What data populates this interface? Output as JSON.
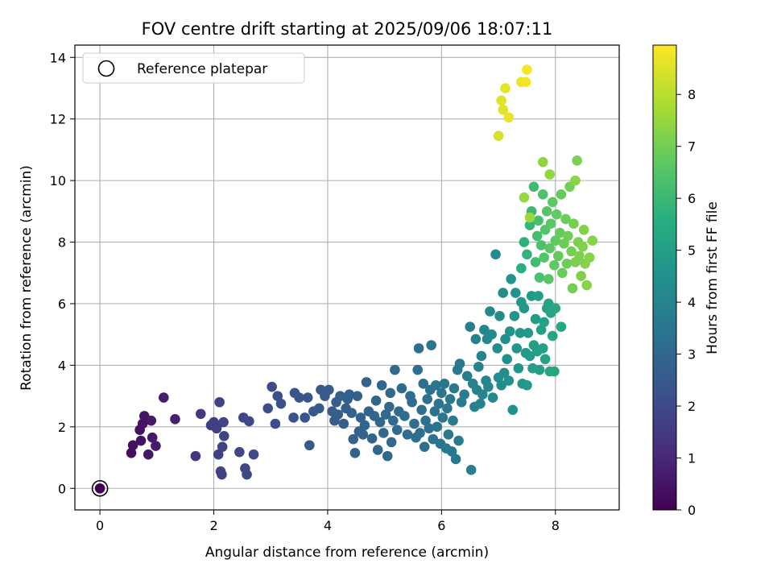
{
  "chart_data": {
    "type": "scatter",
    "title": "FOV centre drift starting at 2025/09/06 18:07:11",
    "xlabel": "Angular distance from reference (arcmin)",
    "ylabel": "Rotation from reference (arcmin)",
    "xlim": [
      -0.44,
      9.12
    ],
    "ylim": [
      -0.7,
      14.4
    ],
    "xticks": [
      0,
      2,
      4,
      6,
      8
    ],
    "yticks": [
      0,
      2,
      4,
      6,
      8,
      10,
      12,
      14
    ],
    "grid": true,
    "legend": {
      "placement": "top-left",
      "entries": [
        "Reference platepar"
      ]
    },
    "reference_point": {
      "x": 0,
      "y": 0
    },
    "colorbar": {
      "label": "Hours from first FF file",
      "range": [
        0,
        8.95
      ],
      "ticks": [
        0,
        1,
        2,
        3,
        4,
        5,
        6,
        7,
        8
      ],
      "colormap": "viridis"
    },
    "points": [
      [
        0.0,
        0.0,
        0.0
      ],
      [
        0.55,
        1.15,
        0.3
      ],
      [
        0.58,
        1.4,
        0.35
      ],
      [
        0.7,
        1.9,
        0.4
      ],
      [
        0.75,
        2.1,
        0.45
      ],
      [
        0.78,
        2.35,
        0.5
      ],
      [
        0.72,
        1.55,
        0.45
      ],
      [
        0.85,
        1.1,
        0.55
      ],
      [
        0.9,
        2.2,
        0.6
      ],
      [
        0.92,
        1.65,
        0.6
      ],
      [
        0.98,
        1.38,
        0.65
      ],
      [
        1.12,
        2.95,
        0.7
      ],
      [
        1.32,
        2.25,
        0.8
      ],
      [
        1.68,
        1.05,
        1.4
      ],
      [
        1.77,
        2.42,
        1.5
      ],
      [
        1.95,
        2.05,
        1.6
      ],
      [
        2.0,
        2.15,
        1.65
      ],
      [
        2.05,
        1.95,
        1.65
      ],
      [
        2.08,
        1.1,
        1.7
      ],
      [
        2.1,
        2.8,
        1.75
      ],
      [
        2.12,
        0.55,
        1.75
      ],
      [
        2.14,
        0.45,
        1.75
      ],
      [
        2.15,
        1.35,
        1.8
      ],
      [
        2.17,
        2.15,
        1.8
      ],
      [
        2.18,
        1.7,
        1.8
      ],
      [
        2.45,
        1.18,
        1.9
      ],
      [
        2.52,
        2.3,
        1.95
      ],
      [
        2.55,
        0.65,
        1.95
      ],
      [
        2.58,
        0.45,
        2.0
      ],
      [
        2.62,
        2.18,
        2.0
      ],
      [
        2.7,
        1.1,
        2.05
      ],
      [
        2.95,
        2.6,
        2.1
      ],
      [
        3.02,
        3.3,
        2.1
      ],
      [
        3.08,
        2.1,
        2.15
      ],
      [
        3.12,
        3.0,
        2.15
      ],
      [
        3.18,
        2.75,
        2.2
      ],
      [
        3.4,
        2.3,
        2.25
      ],
      [
        3.42,
        3.1,
        2.25
      ],
      [
        3.5,
        2.95,
        2.3
      ],
      [
        3.6,
        2.3,
        2.35
      ],
      [
        3.65,
        2.95,
        2.35
      ],
      [
        3.68,
        1.4,
        2.4
      ],
      [
        3.75,
        2.5,
        2.45
      ],
      [
        3.85,
        2.6,
        2.5
      ],
      [
        3.88,
        3.2,
        2.5
      ],
      [
        3.95,
        3.0,
        2.55
      ],
      [
        4.02,
        3.2,
        2.55
      ],
      [
        4.08,
        2.5,
        2.6
      ],
      [
        4.12,
        2.2,
        2.6
      ],
      [
        4.15,
        2.8,
        2.65
      ],
      [
        4.18,
        2.4,
        2.65
      ],
      [
        4.22,
        3.0,
        2.7
      ],
      [
        4.28,
        2.1,
        2.7
      ],
      [
        4.32,
        2.6,
        2.72
      ],
      [
        4.35,
        2.9,
        2.75
      ],
      [
        4.38,
        3.05,
        2.75
      ],
      [
        4.42,
        2.45,
        2.78
      ],
      [
        4.45,
        1.6,
        2.78
      ],
      [
        4.48,
        1.15,
        2.8
      ],
      [
        4.52,
        3.0,
        2.82
      ],
      [
        4.55,
        1.85,
        2.82
      ],
      [
        4.58,
        2.3,
        2.85
      ],
      [
        4.62,
        1.75,
        2.85
      ],
      [
        4.65,
        2.05,
        2.88
      ],
      [
        4.68,
        3.45,
        2.88
      ],
      [
        4.72,
        2.5,
        2.9
      ],
      [
        4.78,
        1.62,
        2.9
      ],
      [
        4.82,
        2.35,
        2.92
      ],
      [
        4.85,
        2.85,
        2.95
      ],
      [
        4.88,
        1.25,
        2.95
      ],
      [
        4.92,
        2.15,
        2.98
      ],
      [
        4.95,
        3.35,
        2.98
      ],
      [
        4.98,
        1.8,
        3.0
      ],
      [
        5.02,
        2.4,
        3.0
      ],
      [
        5.05,
        1.05,
        3.02
      ],
      [
        5.08,
        2.65,
        3.02
      ],
      [
        5.1,
        3.1,
        3.05
      ],
      [
        5.12,
        1.5,
        3.05
      ],
      [
        5.15,
        2.2,
        3.08
      ],
      [
        5.18,
        3.85,
        3.08
      ],
      [
        5.22,
        1.9,
        3.1
      ],
      [
        5.25,
        2.5,
        3.1
      ],
      [
        5.3,
        3.25,
        3.12
      ],
      [
        5.35,
        2.35,
        3.15
      ],
      [
        5.4,
        1.75,
        3.15
      ],
      [
        5.45,
        3.0,
        3.18
      ],
      [
        5.48,
        2.8,
        3.18
      ],
      [
        5.52,
        2.1,
        3.2
      ],
      [
        5.55,
        1.65,
        3.22
      ],
      [
        5.58,
        3.85,
        3.22
      ],
      [
        5.6,
        4.55,
        3.25
      ],
      [
        5.62,
        1.8,
        3.25
      ],
      [
        5.65,
        2.55,
        3.28
      ],
      [
        5.68,
        3.4,
        3.28
      ],
      [
        5.7,
        1.35,
        3.3
      ],
      [
        5.72,
        2.2,
        3.32
      ],
      [
        5.75,
        2.9,
        3.32
      ],
      [
        5.78,
        1.95,
        3.35
      ],
      [
        5.8,
        3.2,
        3.35
      ],
      [
        5.82,
        4.65,
        3.38
      ],
      [
        5.85,
        1.6,
        3.38
      ],
      [
        5.88,
        2.5,
        3.4
      ],
      [
        5.9,
        3.35,
        3.42
      ],
      [
        5.92,
        2.0,
        3.42
      ],
      [
        5.95,
        2.75,
        3.45
      ],
      [
        5.98,
        1.45,
        3.45
      ],
      [
        6.0,
        3.1,
        3.48
      ],
      [
        6.02,
        2.3,
        3.48
      ],
      [
        6.05,
        3.4,
        3.5
      ],
      [
        6.08,
        1.3,
        3.52
      ],
      [
        6.1,
        2.6,
        3.52
      ],
      [
        6.12,
        1.75,
        3.55
      ],
      [
        6.15,
        2.9,
        3.55
      ],
      [
        6.18,
        1.2,
        3.58
      ],
      [
        6.2,
        2.2,
        3.6
      ],
      [
        6.22,
        3.25,
        3.6
      ],
      [
        6.25,
        0.95,
        3.62
      ],
      [
        6.28,
        3.85,
        3.62
      ],
      [
        6.3,
        1.55,
        3.65
      ],
      [
        6.32,
        4.05,
        3.65
      ],
      [
        6.35,
        2.8,
        3.68
      ],
      [
        6.4,
        3.05,
        3.7
      ],
      [
        6.45,
        3.65,
        3.75
      ],
      [
        6.5,
        5.25,
        3.8
      ],
      [
        6.52,
        0.6,
        3.8
      ],
      [
        6.55,
        3.4,
        3.85
      ],
      [
        6.58,
        2.65,
        3.88
      ],
      [
        6.6,
        4.85,
        3.9
      ],
      [
        6.62,
        3.2,
        3.92
      ],
      [
        6.65,
        3.95,
        3.95
      ],
      [
        6.68,
        2.75,
        3.98
      ],
      [
        6.7,
        4.3,
        4.0
      ],
      [
        6.72,
        3.05,
        4.02
      ],
      [
        6.75,
        5.15,
        4.05
      ],
      [
        6.78,
        3.5,
        4.08
      ],
      [
        6.8,
        4.85,
        4.1
      ],
      [
        6.82,
        3.3,
        4.12
      ],
      [
        6.85,
        5.75,
        4.15
      ],
      [
        6.88,
        5.0,
        4.18
      ],
      [
        6.9,
        2.95,
        4.2
      ],
      [
        6.95,
        7.6,
        4.25
      ],
      [
        6.98,
        4.55,
        4.28
      ],
      [
        7.0,
        3.6,
        4.3
      ],
      [
        7.02,
        5.6,
        4.32
      ],
      [
        7.05,
        3.35,
        4.35
      ],
      [
        7.08,
        6.35,
        4.38
      ],
      [
        7.1,
        3.75,
        4.4
      ],
      [
        7.12,
        4.85,
        4.42
      ],
      [
        7.15,
        4.2,
        4.45
      ],
      [
        7.18,
        3.5,
        4.48
      ],
      [
        7.2,
        5.1,
        4.5
      ],
      [
        7.22,
        6.8,
        4.52
      ],
      [
        7.25,
        2.55,
        4.55
      ],
      [
        7.28,
        5.6,
        4.58
      ],
      [
        7.3,
        6.35,
        4.6
      ],
      [
        7.32,
        4.55,
        4.62
      ],
      [
        7.35,
        3.9,
        4.65
      ],
      [
        7.38,
        5.05,
        4.68
      ],
      [
        7.4,
        6.05,
        4.7
      ],
      [
        7.42,
        3.4,
        4.72
      ],
      [
        7.45,
        5.85,
        4.75
      ],
      [
        7.48,
        4.4,
        4.78
      ],
      [
        7.5,
        3.35,
        4.8
      ],
      [
        7.52,
        5.05,
        4.82
      ],
      [
        7.55,
        4.3,
        4.85
      ],
      [
        7.58,
        6.25,
        4.88
      ],
      [
        7.6,
        3.9,
        4.9
      ],
      [
        7.62,
        4.65,
        4.92
      ],
      [
        7.65,
        5.5,
        4.95
      ],
      [
        7.68,
        4.45,
        4.98
      ],
      [
        7.7,
        6.25,
        5.0
      ],
      [
        7.72,
        3.85,
        5.02
      ],
      [
        7.75,
        5.15,
        5.05
      ],
      [
        7.78,
        4.55,
        5.08
      ],
      [
        7.8,
        5.4,
        5.1
      ],
      [
        7.82,
        4.2,
        5.12
      ],
      [
        7.85,
        5.85,
        5.15
      ],
      [
        7.88,
        6.0,
        5.18
      ],
      [
        7.9,
        3.8,
        5.2
      ],
      [
        7.92,
        5.7,
        5.22
      ],
      [
        7.95,
        4.95,
        5.25
      ],
      [
        7.98,
        3.8,
        5.28
      ],
      [
        8.0,
        5.85,
        5.3
      ],
      [
        8.1,
        5.25,
        5.35
      ],
      [
        7.4,
        7.15,
        5.6
      ],
      [
        7.45,
        8.0,
        5.7
      ],
      [
        7.5,
        7.6,
        5.8
      ],
      [
        7.55,
        8.55,
        5.9
      ],
      [
        7.58,
        9.0,
        6.0
      ],
      [
        7.62,
        9.8,
        6.1
      ],
      [
        7.65,
        7.35,
        6.15
      ],
      [
        7.68,
        8.2,
        6.2
      ],
      [
        7.7,
        8.7,
        6.25
      ],
      [
        7.72,
        6.85,
        6.3
      ],
      [
        7.75,
        7.9,
        6.35
      ],
      [
        7.78,
        9.55,
        6.4
      ],
      [
        7.8,
        7.5,
        6.45
      ],
      [
        7.82,
        8.4,
        6.5
      ],
      [
        7.85,
        9.0,
        6.55
      ],
      [
        7.88,
        6.8,
        6.6
      ],
      [
        7.9,
        7.8,
        6.62
      ],
      [
        7.92,
        8.6,
        6.65
      ],
      [
        7.95,
        9.3,
        6.68
      ],
      [
        7.98,
        7.25,
        6.7
      ],
      [
        8.0,
        8.05,
        6.72
      ],
      [
        8.02,
        8.9,
        6.75
      ],
      [
        8.05,
        7.55,
        6.78
      ],
      [
        8.08,
        8.3,
        6.8
      ],
      [
        8.1,
        9.55,
        6.82
      ],
      [
        8.12,
        7.0,
        6.85
      ],
      [
        8.15,
        7.95,
        6.88
      ],
      [
        8.18,
        8.75,
        6.9
      ],
      [
        8.2,
        7.3,
        6.92
      ],
      [
        8.22,
        8.2,
        6.95
      ],
      [
        8.25,
        9.8,
        6.98
      ],
      [
        8.28,
        7.7,
        7.0
      ],
      [
        8.3,
        6.5,
        7.02
      ],
      [
        8.32,
        8.6,
        7.05
      ],
      [
        8.35,
        7.35,
        7.08
      ],
      [
        8.38,
        10.65,
        7.1
      ],
      [
        8.4,
        8.0,
        7.12
      ],
      [
        8.42,
        7.55,
        7.15
      ],
      [
        8.45,
        6.9,
        7.18
      ],
      [
        8.48,
        7.85,
        7.2
      ],
      [
        8.5,
        8.4,
        7.22
      ],
      [
        8.52,
        7.3,
        7.25
      ],
      [
        8.55,
        6.6,
        7.28
      ],
      [
        8.6,
        7.5,
        7.3
      ],
      [
        8.65,
        8.05,
        7.32
      ],
      [
        8.35,
        10.0,
        7.35
      ],
      [
        7.78,
        10.6,
        7.4
      ],
      [
        7.9,
        10.2,
        7.45
      ],
      [
        7.45,
        9.45,
        7.5
      ],
      [
        7.55,
        8.8,
        7.55
      ],
      [
        7.0,
        11.45,
        8.4
      ],
      [
        7.05,
        12.6,
        8.5
      ],
      [
        7.08,
        12.3,
        8.55
      ],
      [
        7.12,
        13.0,
        8.6
      ],
      [
        7.18,
        12.05,
        8.65
      ],
      [
        7.4,
        13.2,
        8.75
      ],
      [
        7.48,
        13.2,
        8.8
      ],
      [
        7.5,
        13.6,
        8.85
      ]
    ]
  }
}
